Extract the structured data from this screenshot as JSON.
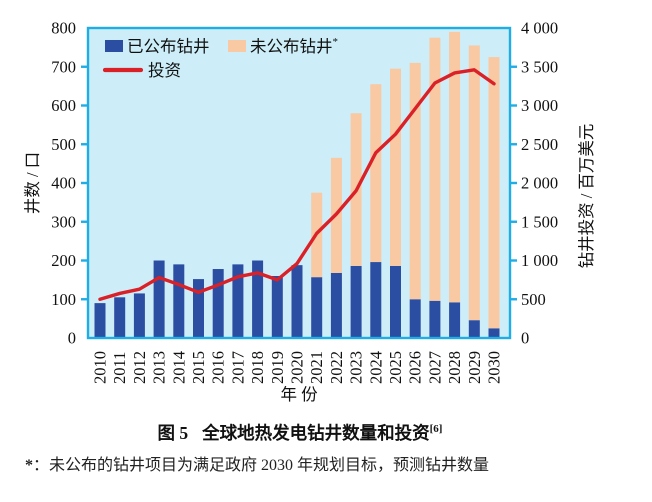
{
  "figure": {
    "caption": {
      "label": "图 5",
      "title": "全球地热发电钻井数量和投资",
      "ref": "[6]"
    },
    "footnote": {
      "marker": "*",
      "text": "：未公布的钻井项目为满足政府 2030 年规划目标，预测钻井数量"
    }
  },
  "chart_data": {
    "type": "bar",
    "subtype": "stacked-bar-with-line",
    "title": "",
    "categories": [
      2010,
      2011,
      2012,
      2013,
      2014,
      2015,
      2016,
      2017,
      2018,
      2019,
      2020,
      2021,
      2022,
      2023,
      2024,
      2025,
      2026,
      2027,
      2028,
      2029,
      2030
    ],
    "series": [
      {
        "name": "已公布钻井",
        "type": "bar",
        "axis": "left",
        "color": "#2b4da2",
        "values": [
          90,
          105,
          115,
          200,
          190,
          152,
          178,
          190,
          200,
          160,
          188,
          157,
          168,
          186,
          196,
          186,
          100,
          96,
          92,
          46,
          25
        ]
      },
      {
        "name": "未公布钻井*",
        "type": "bar",
        "axis": "left",
        "stacked_on": "已公布钻井",
        "color": "#f9c9a3",
        "values": [
          0,
          0,
          0,
          0,
          0,
          0,
          0,
          0,
          0,
          0,
          0,
          218,
          297,
          394,
          459,
          509,
          610,
          679,
          698,
          709,
          700
        ]
      },
      {
        "name": "投资",
        "type": "line",
        "axis": "right",
        "color": "#da2128",
        "values": [
          500,
          575,
          630,
          780,
          690,
          590,
          685,
          790,
          840,
          750,
          960,
          1350,
          1600,
          1900,
          2390,
          2630,
          2960,
          3290,
          3420,
          3460,
          3280
        ]
      }
    ],
    "left_axis": {
      "label": "井数 / 口",
      "min": 0,
      "max": 800,
      "tick_step": 100,
      "tick_labels": [
        "0",
        "100",
        "200",
        "300",
        "400",
        "500",
        "600",
        "700",
        "800"
      ]
    },
    "right_axis": {
      "label": "钻井投资 / 百万美元",
      "min": 0,
      "max": 4000,
      "tick_step": 500,
      "tick_labels": [
        "0",
        "500",
        "1 000",
        "1 500",
        "2 000",
        "2 500",
        "3 000",
        "3 500",
        "4 000"
      ]
    },
    "x_axis": {
      "label": "年 份"
    },
    "legend": {
      "position": "top-left",
      "items": [
        {
          "label": "已公布钻井",
          "sup": "",
          "swatch": "bar",
          "color": "#2b4da2"
        },
        {
          "label": "未公布钻井",
          "sup": "*",
          "swatch": "bar",
          "color": "#f9c9a3"
        },
        {
          "label": "投资",
          "sup": "",
          "swatch": "line",
          "color": "#da2128"
        }
      ]
    },
    "grid": false,
    "colors": {
      "plot_bg": "#cdeef9",
      "axis": "#1fade6",
      "text": "#111111"
    }
  }
}
